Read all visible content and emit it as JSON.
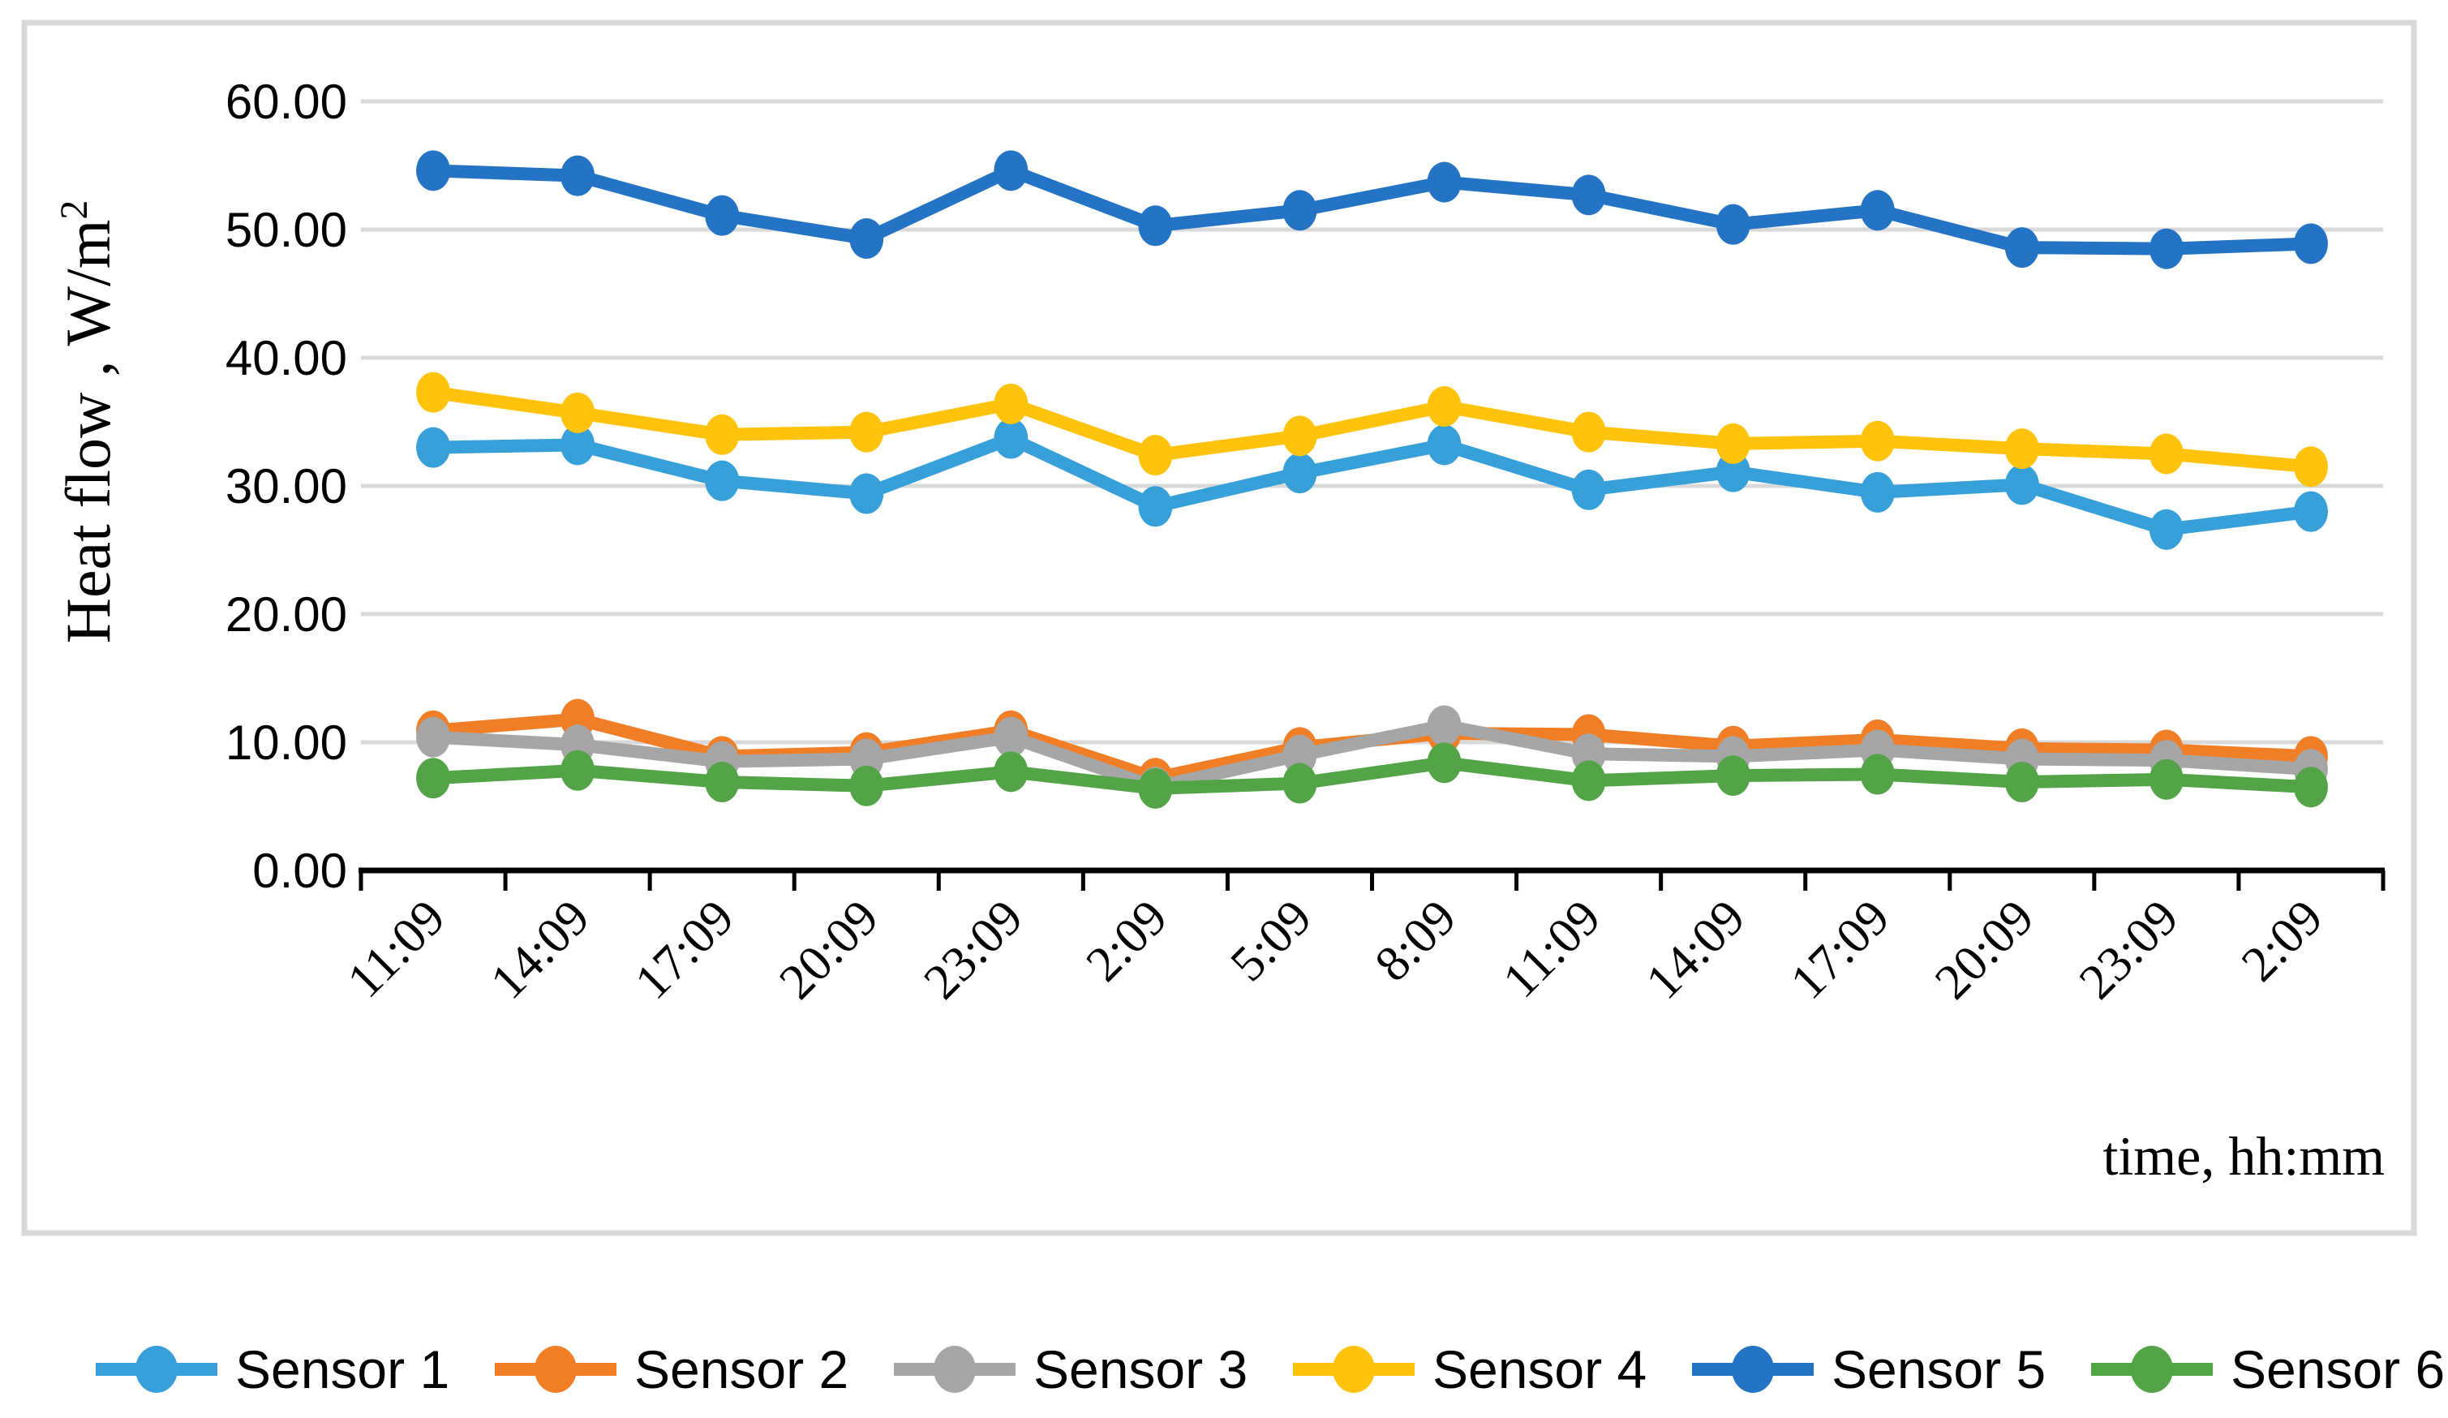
{
  "figure": {
    "y_axis_title_main": "Heat flow , W/m",
    "y_axis_title_sup": "2",
    "x_axis_title": "time, hh:mm"
  },
  "chart_data": {
    "type": "line",
    "title": "",
    "xlabel": "time, hh:mm",
    "ylabel": "Heat flow , W/m2",
    "ylim": [
      0,
      60
    ],
    "y_tick_step": 10,
    "y_tick_labels": [
      "0.00",
      "10.00",
      "20.00",
      "30.00",
      "40.00",
      "50.00",
      "60.00"
    ],
    "grid": "horizontal",
    "gridline_color": "#D9D9D9",
    "axis_color": "#000000",
    "border_color": "#D9D9D9",
    "legend_position": "bottom",
    "marker": "circle",
    "categories": [
      "11:09",
      "14:09",
      "17:09",
      "20:09",
      "23:09",
      "2:09",
      "5:09",
      "8:09",
      "11:09",
      "14:09",
      "17:09",
      "20:09",
      "23:09",
      "2:09"
    ],
    "series": [
      {
        "name": "Sensor 1",
        "color": "#37A0D9",
        "values": [
          33.0,
          33.2,
          30.4,
          29.4,
          33.7,
          28.4,
          31.0,
          33.2,
          29.7,
          31.1,
          29.5,
          30.1,
          26.6,
          28.0
        ]
      },
      {
        "name": "Sensor 2",
        "color": "#F07E27",
        "values": [
          10.9,
          11.8,
          8.9,
          9.2,
          10.9,
          7.2,
          9.6,
          10.7,
          10.6,
          9.7,
          10.2,
          9.5,
          9.4,
          8.9
        ]
      },
      {
        "name": "Sensor 3",
        "color": "#A6A6A6",
        "values": [
          10.4,
          9.8,
          8.5,
          8.7,
          10.4,
          6.5,
          9.0,
          11.3,
          9.1,
          8.9,
          9.4,
          8.7,
          8.6,
          7.9
        ]
      },
      {
        "name": "Sensor 4",
        "color": "#FFC30B",
        "values": [
          37.3,
          35.7,
          34.0,
          34.2,
          36.4,
          32.4,
          33.9,
          36.2,
          34.2,
          33.3,
          33.5,
          32.9,
          32.5,
          31.5
        ]
      },
      {
        "name": "Sensor 5",
        "color": "#2473C5",
        "values": [
          54.6,
          54.2,
          51.1,
          49.3,
          54.6,
          50.3,
          51.5,
          53.7,
          52.7,
          50.4,
          51.5,
          48.6,
          48.5,
          48.9
        ]
      },
      {
        "name": "Sensor 6",
        "color": "#52A447",
        "values": [
          7.2,
          7.8,
          6.9,
          6.6,
          7.7,
          6.4,
          6.8,
          8.4,
          7.0,
          7.4,
          7.5,
          6.9,
          7.1,
          6.5
        ]
      }
    ]
  }
}
